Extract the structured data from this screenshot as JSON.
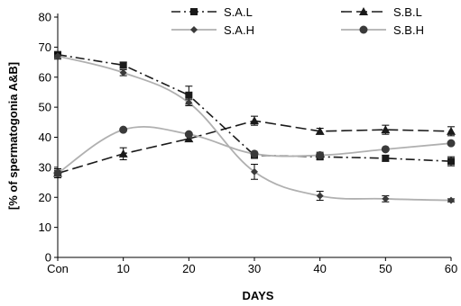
{
  "chart_data": {
    "type": "line",
    "title": "",
    "xlabel": "DAYS",
    "ylabel": "[% of spermatogonia A&B]",
    "categories": [
      "Con",
      "10",
      "20",
      "30",
      "40",
      "50",
      "60"
    ],
    "y_ticks": [
      "0",
      "10",
      "20",
      "30",
      "40",
      "50",
      "60",
      "70",
      "80"
    ],
    "ylim": [
      0,
      80
    ],
    "grid": false,
    "legend": "top",
    "series": [
      {
        "name": "S.A.L",
        "values": [
          67.5,
          64,
          54,
          34,
          33.5,
          33,
          32
        ],
        "errors": [
          1,
          1,
          3,
          1,
          1,
          1,
          1.5
        ],
        "marker": "square",
        "line": "dash-dot",
        "color": "#1a1a1a"
      },
      {
        "name": "S.B.L",
        "values": [
          28,
          34.5,
          39.5,
          45.5,
          42,
          42.5,
          42
        ],
        "errors": [
          1,
          2,
          1,
          1.5,
          1,
          1.5,
          1.5
        ],
        "marker": "triangle",
        "line": "long-dash",
        "color": "#1a1a1a"
      },
      {
        "name": "S.A.H",
        "values": [
          67,
          61.5,
          51.5,
          28.5,
          20.5,
          19.5,
          19
        ],
        "errors": [
          1,
          1,
          1,
          2.5,
          1.5,
          1,
          0.5
        ],
        "marker": "diamond",
        "line": "solid",
        "color": "#9a9a9a"
      },
      {
        "name": "S.B.H",
        "values": [
          28,
          42.5,
          41,
          34.5,
          34,
          36,
          38
        ],
        "errors": [
          1.5,
          0,
          0,
          0,
          1,
          0,
          0
        ],
        "marker": "circle",
        "line": "solid",
        "color": "#9a9a9a"
      }
    ]
  }
}
